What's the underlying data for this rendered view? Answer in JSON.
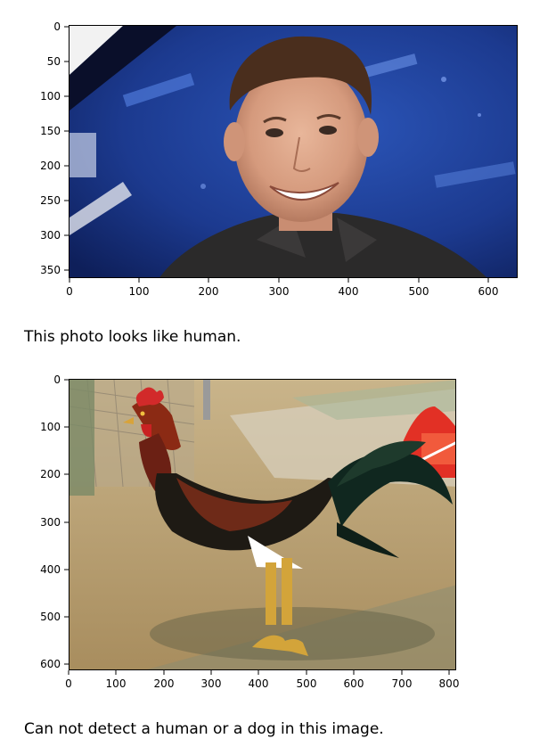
{
  "outputs": [
    {
      "kind": "image-plot",
      "subject": "man-photo",
      "x_ticks": [
        "0",
        "100",
        "200",
        "300",
        "400",
        "500",
        "600"
      ],
      "y_ticks": [
        "0",
        "50",
        "100",
        "150",
        "200",
        "250",
        "300",
        "350"
      ],
      "caption": "This photo looks like human."
    },
    {
      "kind": "image-plot",
      "subject": "rooster-photo",
      "x_ticks": [
        "0",
        "100",
        "200",
        "300",
        "400",
        "500",
        "600",
        "700",
        "800"
      ],
      "y_ticks": [
        "0",
        "100",
        "200",
        "300",
        "400",
        "500",
        "600"
      ],
      "caption": "Can not detect a human or a dog in this image."
    }
  ]
}
